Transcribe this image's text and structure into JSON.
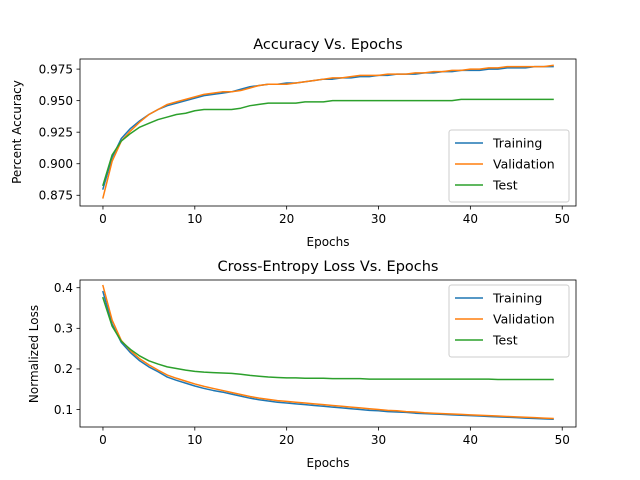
{
  "chart_data": [
    {
      "type": "line",
      "title": "Accuracy Vs. Epochs",
      "xlabel": "Epochs",
      "ylabel": "Percent Accuracy",
      "xlim": [
        -2.5,
        51.5
      ],
      "ylim": [
        0.8665,
        0.983
      ],
      "xticks": [
        0,
        10,
        20,
        30,
        40,
        50
      ],
      "yticks": [
        0.875,
        0.9,
        0.925,
        0.95,
        0.975
      ],
      "ytick_labels": [
        "0.875",
        "0.900",
        "0.925",
        "0.950",
        "0.975"
      ],
      "legend_position": "lower-right",
      "series": [
        {
          "name": "Training",
          "color": "#1f77b4",
          "values": [
            0.88,
            0.905,
            0.92,
            0.928,
            0.934,
            0.939,
            0.943,
            0.946,
            0.948,
            0.95,
            0.952,
            0.954,
            0.955,
            0.956,
            0.957,
            0.959,
            0.961,
            0.962,
            0.963,
            0.963,
            0.964,
            0.964,
            0.965,
            0.966,
            0.967,
            0.967,
            0.968,
            0.968,
            0.969,
            0.969,
            0.97,
            0.97,
            0.971,
            0.971,
            0.971,
            0.972,
            0.972,
            0.973,
            0.973,
            0.974,
            0.974,
            0.974,
            0.975,
            0.975,
            0.976,
            0.976,
            0.976,
            0.977,
            0.977,
            0.977
          ]
        },
        {
          "name": "Validation",
          "color": "#ff7f0e",
          "values": [
            0.873,
            0.902,
            0.918,
            0.926,
            0.933,
            0.939,
            0.943,
            0.947,
            0.949,
            0.951,
            0.953,
            0.955,
            0.956,
            0.957,
            0.957,
            0.958,
            0.96,
            0.962,
            0.963,
            0.963,
            0.963,
            0.964,
            0.965,
            0.966,
            0.967,
            0.968,
            0.968,
            0.969,
            0.97,
            0.97,
            0.97,
            0.971,
            0.971,
            0.971,
            0.972,
            0.972,
            0.973,
            0.973,
            0.974,
            0.974,
            0.975,
            0.975,
            0.976,
            0.976,
            0.977,
            0.977,
            0.977,
            0.977,
            0.977,
            0.978
          ]
        },
        {
          "name": "Test",
          "color": "#2ca02c",
          "values": [
            0.883,
            0.907,
            0.918,
            0.924,
            0.929,
            0.932,
            0.935,
            0.937,
            0.939,
            0.94,
            0.942,
            0.943,
            0.943,
            0.943,
            0.943,
            0.944,
            0.946,
            0.947,
            0.948,
            0.948,
            0.948,
            0.948,
            0.949,
            0.949,
            0.949,
            0.95,
            0.95,
            0.95,
            0.95,
            0.95,
            0.95,
            0.95,
            0.95,
            0.95,
            0.95,
            0.95,
            0.95,
            0.95,
            0.95,
            0.951,
            0.951,
            0.951,
            0.951,
            0.951,
            0.951,
            0.951,
            0.951,
            0.951,
            0.951,
            0.951
          ]
        }
      ]
    },
    {
      "type": "line",
      "title": "Cross-Entropy Loss Vs. Epochs",
      "xlabel": "Epochs",
      "ylabel": "Normalized Loss",
      "xlim": [
        -2.5,
        51.5
      ],
      "ylim": [
        0.057,
        0.419
      ],
      "xticks": [
        0,
        10,
        20,
        30,
        40,
        50
      ],
      "yticks": [
        0.1,
        0.2,
        0.3,
        0.4
      ],
      "ytick_labels": [
        "0.1",
        "0.2",
        "0.3",
        "0.4"
      ],
      "legend_position": "upper-right",
      "series": [
        {
          "name": "Training",
          "color": "#1f77b4",
          "values": [
            0.39,
            0.31,
            0.265,
            0.24,
            0.22,
            0.205,
            0.193,
            0.18,
            0.172,
            0.165,
            0.158,
            0.152,
            0.147,
            0.143,
            0.138,
            0.133,
            0.128,
            0.124,
            0.121,
            0.118,
            0.116,
            0.114,
            0.112,
            0.11,
            0.108,
            0.106,
            0.104,
            0.102,
            0.1,
            0.098,
            0.097,
            0.095,
            0.094,
            0.093,
            0.091,
            0.09,
            0.089,
            0.088,
            0.087,
            0.086,
            0.085,
            0.084,
            0.083,
            0.082,
            0.081,
            0.08,
            0.079,
            0.078,
            0.077,
            0.076
          ]
        },
        {
          "name": "Validation",
          "color": "#ff7f0e",
          "values": [
            0.405,
            0.32,
            0.27,
            0.245,
            0.225,
            0.21,
            0.197,
            0.185,
            0.177,
            0.17,
            0.163,
            0.157,
            0.152,
            0.147,
            0.142,
            0.137,
            0.132,
            0.128,
            0.125,
            0.122,
            0.12,
            0.118,
            0.116,
            0.114,
            0.112,
            0.11,
            0.108,
            0.106,
            0.104,
            0.102,
            0.1,
            0.098,
            0.097,
            0.095,
            0.094,
            0.092,
            0.091,
            0.09,
            0.089,
            0.088,
            0.087,
            0.086,
            0.085,
            0.084,
            0.083,
            0.082,
            0.081,
            0.08,
            0.079,
            0.078
          ]
        },
        {
          "name": "Test",
          "color": "#2ca02c",
          "values": [
            0.375,
            0.305,
            0.268,
            0.248,
            0.232,
            0.22,
            0.212,
            0.205,
            0.201,
            0.197,
            0.194,
            0.192,
            0.191,
            0.19,
            0.189,
            0.187,
            0.184,
            0.182,
            0.18,
            0.179,
            0.178,
            0.178,
            0.177,
            0.177,
            0.177,
            0.176,
            0.176,
            0.176,
            0.176,
            0.175,
            0.175,
            0.175,
            0.175,
            0.175,
            0.175,
            0.175,
            0.175,
            0.175,
            0.175,
            0.175,
            0.175,
            0.175,
            0.175,
            0.174,
            0.174,
            0.174,
            0.174,
            0.174,
            0.174,
            0.174
          ]
        }
      ]
    }
  ]
}
